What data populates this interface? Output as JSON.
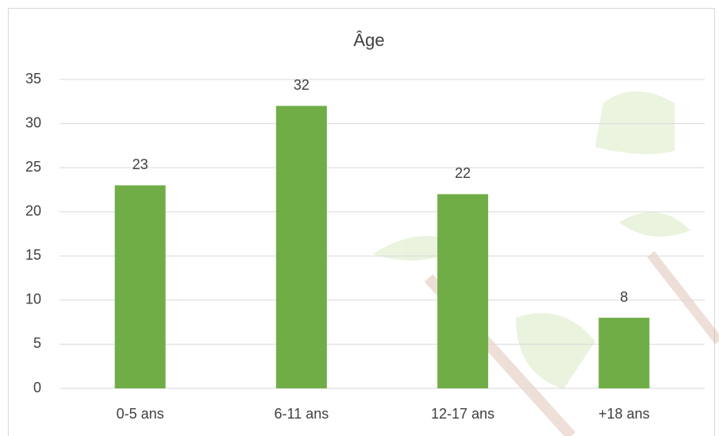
{
  "chart_data": {
    "type": "bar",
    "title": "Âge",
    "categories": [
      "0-5 ans",
      "6-11 ans",
      "12-17 ans",
      "+18 ans"
    ],
    "values": [
      23,
      32,
      22,
      8
    ],
    "color": "#70ad47",
    "ylim": [
      0,
      35
    ],
    "yticks": [
      0,
      5,
      10,
      15,
      20,
      25,
      30,
      35
    ],
    "grid": true
  }
}
